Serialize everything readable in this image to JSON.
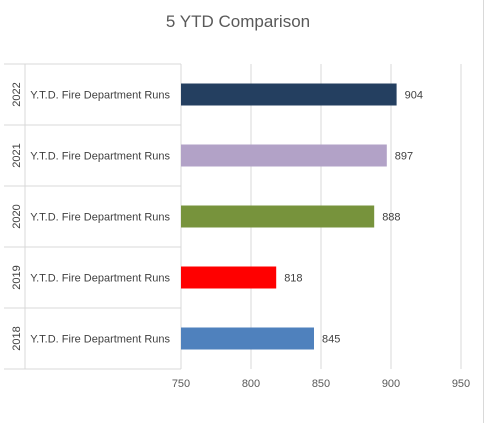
{
  "chart_data": {
    "type": "bar",
    "orientation": "horizontal",
    "title": "5 YTD Comparison",
    "category_label": "Y.T.D. Fire Department Runs",
    "years": [
      "2022",
      "2021",
      "2020",
      "2019",
      "2018"
    ],
    "values": [
      904,
      897,
      888,
      818,
      845
    ],
    "colors": [
      "#243f60",
      "#b2a2c7",
      "#77933c",
      "#ff0000",
      "#4f81bd"
    ],
    "xlim": [
      750,
      950
    ],
    "x_ticks": [
      750,
      800,
      850,
      900,
      950
    ],
    "grid": true,
    "legend": "none"
  }
}
